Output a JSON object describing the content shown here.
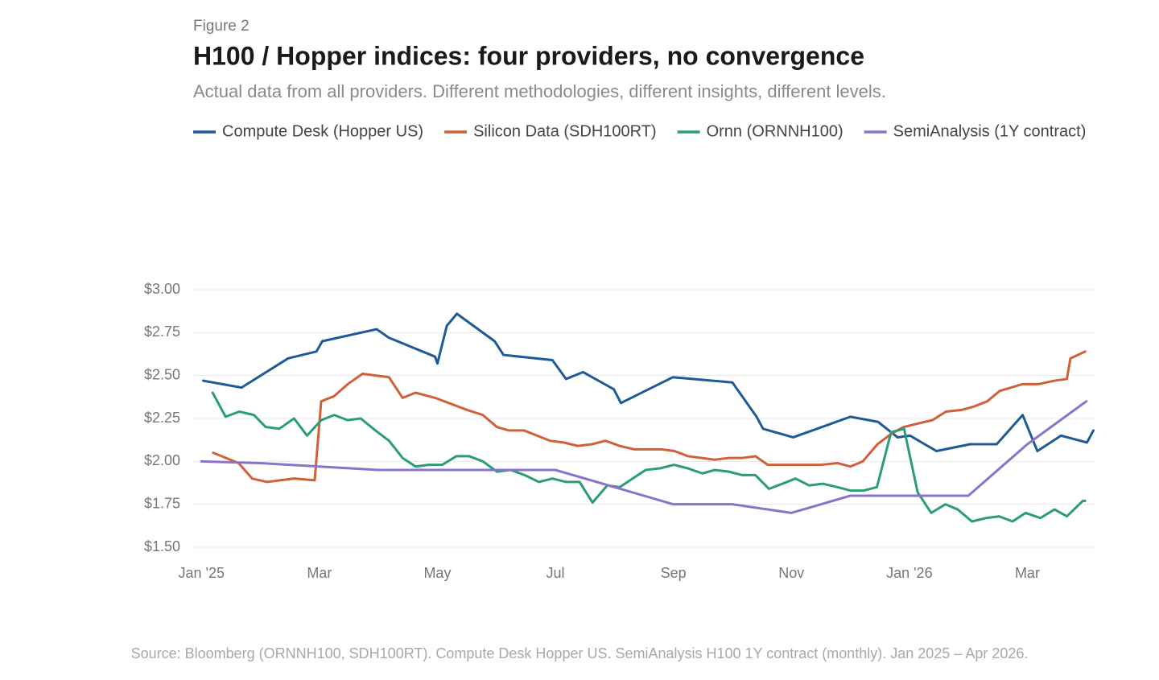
{
  "chart_data": {
    "type": "line",
    "figure_label": "Figure 2",
    "title": "H100 / Hopper indices: four providers, no convergence",
    "subtitle": "Actual data from all providers. Different methodologies, different insights, different levels.",
    "source": "Source: Bloomberg (ORNNH100, SDH100RT). Compute Desk Hopper US. SemiAnalysis H100 1Y contract (monthly). Jan 2025 – Apr 2026.",
    "xlim": [
      -0.14,
      15.14
    ],
    "xticks": [
      {
        "value": 0,
        "label": "Jan '25"
      },
      {
        "value": 2,
        "label": "Mar"
      },
      {
        "value": 4,
        "label": "May"
      },
      {
        "value": 6,
        "label": "Jul"
      },
      {
        "value": 8,
        "label": "Sep"
      },
      {
        "value": 10,
        "label": "Nov"
      },
      {
        "value": 12,
        "label": "Jan '26"
      },
      {
        "value": 14,
        "label": "Mar"
      }
    ],
    "ylim": [
      1.5,
      3.0
    ],
    "yticks": [
      {
        "value": 1.5,
        "label": "$1.50"
      },
      {
        "value": 1.75,
        "label": "$1.75"
      },
      {
        "value": 2,
        "label": "$2.00"
      },
      {
        "value": 2.25,
        "label": "$2.25"
      },
      {
        "value": 2.5,
        "label": "$2.50"
      },
      {
        "value": 2.75,
        "label": "$2.75"
      },
      {
        "value": 3,
        "label": "$3.00"
      }
    ],
    "grid": true,
    "series": [
      {
        "name": "Compute Desk (Hopper US)",
        "color": "#1f5a96",
        "x": [
          0.03,
          0.68,
          1.47,
          1.95,
          2.05,
          2.97,
          3.18,
          3.96,
          4.0,
          4.16,
          4.33,
          4.97,
          5.12,
          5.95,
          6.18,
          6.47,
          6.99,
          7.11,
          7.99,
          9.0,
          9.41,
          9.52,
          10.03,
          11.0,
          11.47,
          11.69,
          11.8,
          12.01,
          12.46,
          13.03,
          13.48,
          13.92,
          14.17,
          14.57,
          15.01,
          15.12
        ],
        "values": [
          2.47,
          2.43,
          2.6,
          2.64,
          2.7,
          2.77,
          2.72,
          2.61,
          2.57,
          2.79,
          2.86,
          2.7,
          2.62,
          2.59,
          2.48,
          2.52,
          2.42,
          2.34,
          2.49,
          2.46,
          2.26,
          2.19,
          2.14,
          2.26,
          2.23,
          2.17,
          2.14,
          2.15,
          2.06,
          2.1,
          2.1,
          2.27,
          2.06,
          2.15,
          2.11,
          2.18
        ]
      },
      {
        "name": "Silicon Data (SDH100RT)",
        "color": "#d0603a",
        "x": [
          0.2,
          0.63,
          0.86,
          1.11,
          1.57,
          1.92,
          2.03,
          2.25,
          2.48,
          2.73,
          3.18,
          3.41,
          3.63,
          3.96,
          4.5,
          4.77,
          5.01,
          5.21,
          5.47,
          5.91,
          6.14,
          6.38,
          6.62,
          6.85,
          7.09,
          7.34,
          7.8,
          8.02,
          8.25,
          8.7,
          8.94,
          9.17,
          9.39,
          9.6,
          10.5,
          10.78,
          11.0,
          11.21,
          11.46,
          11.69,
          11.9,
          12.14,
          12.39,
          12.62,
          12.89,
          13.1,
          13.32,
          13.53,
          13.92,
          14.19,
          14.46,
          14.67,
          14.73,
          14.98
        ],
        "values": [
          2.05,
          1.99,
          1.9,
          1.88,
          1.9,
          1.89,
          2.35,
          2.38,
          2.45,
          2.51,
          2.49,
          2.37,
          2.4,
          2.37,
          2.3,
          2.27,
          2.2,
          2.18,
          2.18,
          2.12,
          2.11,
          2.09,
          2.1,
          2.12,
          2.09,
          2.07,
          2.07,
          2.06,
          2.03,
          2.01,
          2.02,
          2.02,
          2.03,
          1.98,
          1.98,
          1.99,
          1.97,
          2.0,
          2.1,
          2.16,
          2.2,
          2.22,
          2.24,
          2.29,
          2.3,
          2.32,
          2.35,
          2.41,
          2.45,
          2.45,
          2.47,
          2.48,
          2.6,
          2.64
        ]
      },
      {
        "name": "Ornn (ORNNH100)",
        "color": "#2a9d78",
        "x": [
          0.19,
          0.41,
          0.64,
          0.89,
          1.09,
          1.32,
          1.57,
          1.79,
          2.03,
          2.25,
          2.48,
          2.7,
          2.95,
          3.18,
          3.41,
          3.63,
          3.85,
          4.08,
          4.32,
          4.54,
          4.77,
          5.01,
          5.24,
          5.48,
          5.72,
          5.95,
          6.18,
          6.41,
          6.63,
          6.88,
          7.09,
          7.31,
          7.53,
          7.78,
          8.01,
          8.24,
          8.49,
          8.7,
          8.94,
          9.17,
          9.39,
          9.62,
          9.85,
          10.07,
          10.3,
          10.53,
          10.78,
          11.0,
          11.23,
          11.45,
          11.69,
          11.91,
          12.14,
          12.37,
          12.61,
          12.82,
          13.06,
          13.3,
          13.52,
          13.75,
          13.97,
          14.22,
          14.46,
          14.67,
          14.94,
          14.98
        ],
        "values": [
          2.4,
          2.26,
          2.29,
          2.27,
          2.2,
          2.19,
          2.25,
          2.15,
          2.24,
          2.27,
          2.24,
          2.25,
          2.18,
          2.12,
          2.02,
          1.97,
          1.98,
          1.98,
          2.03,
          2.03,
          2.0,
          1.94,
          1.95,
          1.92,
          1.88,
          1.9,
          1.88,
          1.88,
          1.76,
          1.86,
          1.85,
          1.9,
          1.95,
          1.96,
          1.98,
          1.96,
          1.93,
          1.95,
          1.94,
          1.92,
          1.92,
          1.84,
          1.87,
          1.9,
          1.86,
          1.87,
          1.85,
          1.83,
          1.83,
          1.85,
          2.17,
          2.19,
          1.82,
          1.7,
          1.75,
          1.72,
          1.65,
          1.67,
          1.68,
          1.65,
          1.7,
          1.67,
          1.72,
          1.68,
          1.77,
          1.77
        ]
      },
      {
        "name": "SemiAnalysis (1Y contract)",
        "color": "#8b73cc",
        "x": [
          0,
          1,
          2,
          3,
          4,
          5,
          6,
          7,
          8,
          9,
          10,
          11,
          12,
          13,
          14,
          15
        ],
        "values": [
          2.0,
          1.99,
          1.97,
          1.95,
          1.95,
          1.95,
          1.95,
          1.85,
          1.75,
          1.75,
          1.7,
          1.8,
          1.8,
          1.8,
          2.1,
          2.35
        ]
      }
    ]
  }
}
